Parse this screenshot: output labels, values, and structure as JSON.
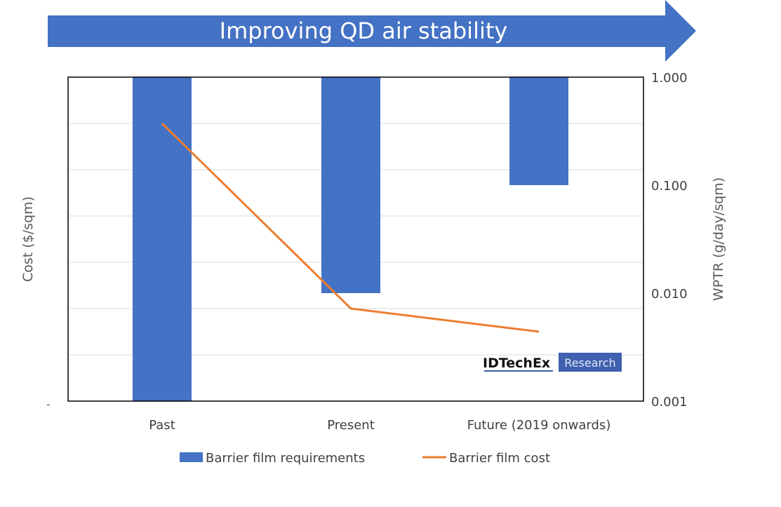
{
  "banner": {
    "text": "Improving QD air stability"
  },
  "logo": {
    "brand": "IDTechEx",
    "tag": "Research"
  },
  "colors": {
    "bar": "#4472c4",
    "line": "#ed7d31",
    "banner": "#4472c4"
  },
  "chart_data": {
    "type": "bar+line",
    "categories": [
      "Past",
      "Present",
      "Future (2019 onwards)"
    ],
    "series": [
      {
        "name": "Barrier film requirements",
        "axis": "right",
        "type": "bar",
        "values": [
          0.001,
          0.01,
          0.1
        ]
      },
      {
        "name": "Barrier film cost",
        "axis": "left",
        "type": "line",
        "values": [
          6.0,
          2.0,
          1.5
        ]
      }
    ],
    "ylabel_left": "Cost ($/sqm)",
    "ylabel_right": "WPTR (g/day/sqm)",
    "left_axis": {
      "ticks": [
        "-"
      ],
      "range": [
        0,
        7
      ],
      "note": "unlabeled relative scale"
    },
    "right_axis": {
      "scale": "log",
      "range": [
        0.001,
        1
      ],
      "ticks": [
        "1.000",
        "0.100",
        "0.010",
        "0.001"
      ],
      "reversed_bars": true
    },
    "grid": true,
    "legend": "bottom"
  }
}
